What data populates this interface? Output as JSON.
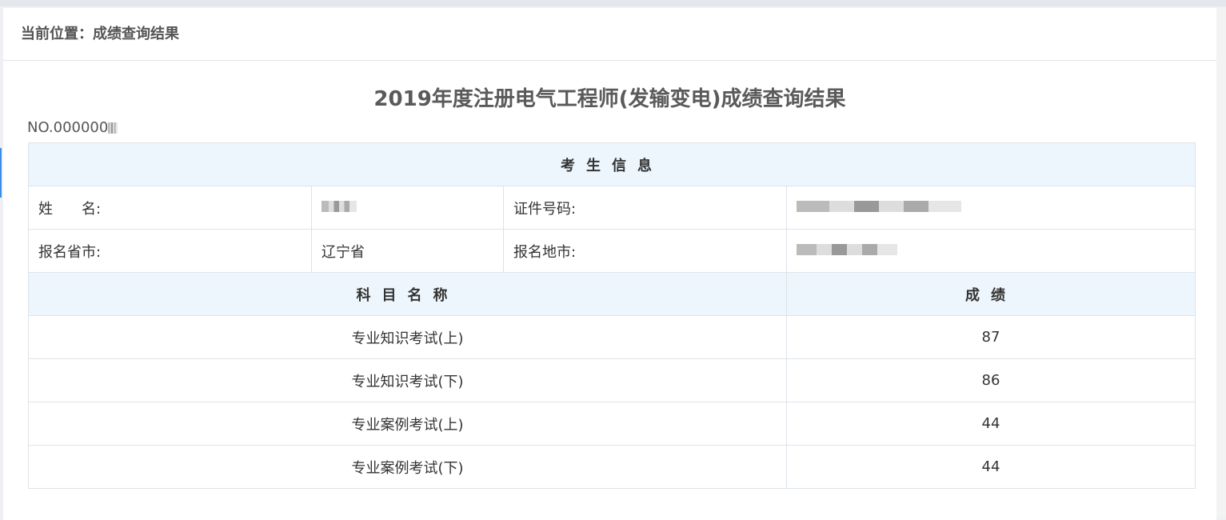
{
  "breadcrumb": "当前位置：成绩查询结果",
  "title": "2019年度注册电气工程师(发输变电)成绩查询结果",
  "serial_no": "NO.000000",
  "info": {
    "section_header": "考生信息",
    "name_label": "姓　　名:",
    "id_label": "证件号码:",
    "province_label": "报名省市:",
    "province_value": "辽宁省",
    "city_label": "报名地市:"
  },
  "scores": {
    "subject_header": "科目名称",
    "score_header": "成绩",
    "rows": [
      {
        "subject": "专业知识考试(上)",
        "score": "87"
      },
      {
        "subject": "专业知识考试(下)",
        "score": "86"
      },
      {
        "subject": "专业案例考试(上)",
        "score": "44"
      },
      {
        "subject": "专业案例考试(下)",
        "score": "44"
      }
    ]
  }
}
